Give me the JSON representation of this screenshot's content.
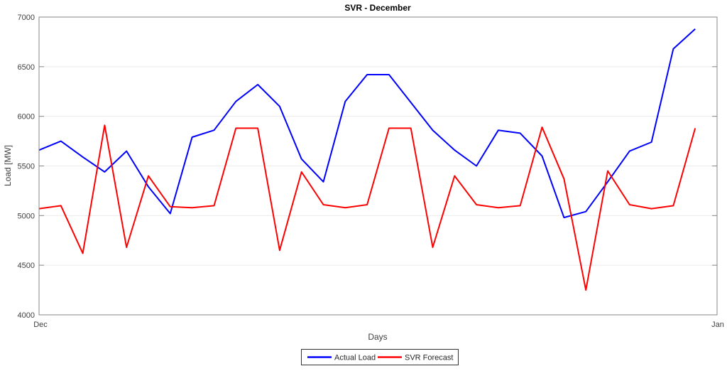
{
  "chart_data": {
    "type": "line",
    "title": "SVR - December",
    "xlabel": "Days",
    "ylabel": "Load [MW]",
    "xlim": [
      1,
      32
    ],
    "ylim": [
      4000,
      7000
    ],
    "y_ticks": [
      4000,
      4500,
      5000,
      5500,
      6000,
      6500,
      7000
    ],
    "x_ticks": [
      {
        "value": 1,
        "label": "Dec"
      },
      {
        "value": 32,
        "label": "Jan"
      }
    ],
    "grid": "horizontal",
    "legend_position": "bottom-center",
    "x": [
      1,
      2,
      3,
      4,
      5,
      6,
      7,
      8,
      9,
      10,
      11,
      12,
      13,
      14,
      15,
      16,
      17,
      18,
      19,
      20,
      21,
      22,
      23,
      24,
      25,
      26,
      27,
      28,
      29,
      30,
      31
    ],
    "series": [
      {
        "name": "Actual Load",
        "color": "#0000ff",
        "values": [
          5660,
          5750,
          5590,
          5440,
          5650,
          5290,
          5020,
          5790,
          5860,
          6150,
          6320,
          6100,
          5570,
          5340,
          6150,
          6420,
          6420,
          6140,
          5860,
          5660,
          5500,
          5860,
          5830,
          5600,
          4980,
          5040,
          5340,
          5650,
          5740,
          6680,
          6880
        ]
      },
      {
        "name": "SVR Forecast",
        "color": "#ff0000",
        "values": [
          5070,
          5100,
          4620,
          5910,
          4680,
          5400,
          5090,
          5080,
          5100,
          5880,
          5880,
          4650,
          5440,
          5110,
          5080,
          5110,
          5880,
          5880,
          4680,
          5400,
          5110,
          5080,
          5100,
          5890,
          5370,
          4250,
          5450,
          5110,
          5070,
          5100,
          5880
        ]
      }
    ],
    "style_colors": {
      "grid": "#ebebeb",
      "axis_box": "#878787",
      "tick_mark": "#878787",
      "tick_text": "#404040",
      "title": "#000000",
      "legend_border": "#333333",
      "legend_bg": "#ffffff"
    }
  }
}
